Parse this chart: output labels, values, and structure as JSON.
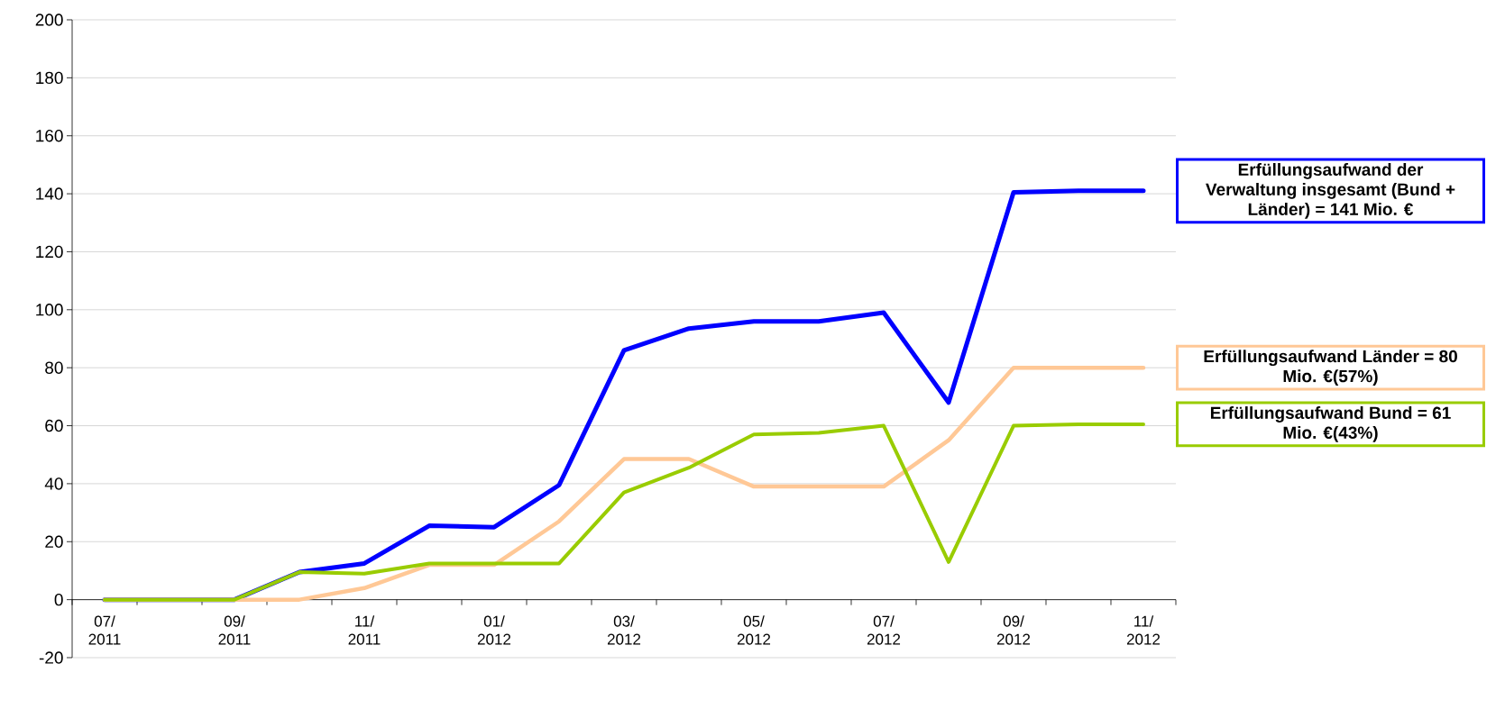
{
  "chart_data": {
    "type": "line",
    "categories": [
      "07/ 2011",
      null,
      "09/ 2011",
      null,
      "11/ 2011",
      null,
      "01/ 2012",
      null,
      "03/ 2012",
      null,
      "05/ 2012",
      null,
      "07/ 2012",
      null,
      "09/ 2012",
      null,
      "11/ 2012"
    ],
    "series": [
      {
        "name": "Erfüllungsaufwand der Verwaltung insgesamt (Bund + Länder) = 141 Mio. €",
        "color": "#0000ff",
        "values": [
          0,
          0,
          0,
          9.5,
          12.5,
          25.5,
          25,
          39.5,
          86,
          93.5,
          96,
          96,
          99,
          68,
          140.5,
          141,
          141
        ]
      },
      {
        "name": "Erfüllungsaufwand Länder = 80 Mio. €(57%)",
        "color": "#ffc896",
        "values": [
          0,
          0,
          0,
          0,
          4,
          12,
          12,
          27,
          48.5,
          48.5,
          39,
          39,
          39,
          55,
          80,
          80,
          80
        ]
      },
      {
        "name": "Erfüllungsaufwand Bund = 61 Mio. €(43%)",
        "color": "#99cc00",
        "values": [
          0,
          0,
          0,
          9.5,
          9,
          12.5,
          12.5,
          12.5,
          37,
          45.5,
          57,
          57.5,
          60,
          13,
          60,
          60.5,
          60.5
        ]
      }
    ],
    "ylim": [
      -20,
      200
    ],
    "yticks": [
      -20,
      0,
      20,
      40,
      60,
      80,
      100,
      120,
      140,
      160,
      180,
      200
    ],
    "grid": "y"
  }
}
